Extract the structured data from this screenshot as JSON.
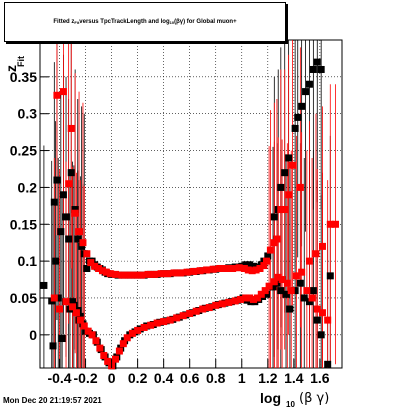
{
  "title": {
    "part1": "Fitted  z",
    "sub1": "Fit",
    "part2": "  versus TpcTrackLength and log",
    "sub2": "10",
    "part3": "(βγ) for Global muon+"
  },
  "footer": "Mon Dec 20 21:19:57 2021",
  "chart_data": {
    "type": "scatter",
    "title": "Fitted z_Fit versus TpcTrackLength and log10(βγ) for Global muon+",
    "xlabel": "log10 (β γ)",
    "ylabel": "z_Fit",
    "xlim": [
      -0.55,
      1.77
    ],
    "ylim": [
      -0.045,
      0.4
    ],
    "grid": true,
    "x_ticks": [
      -0.4,
      -0.2,
      0,
      0.2,
      0.4,
      0.6,
      0.8,
      1,
      1.2,
      1.4,
      1.6
    ],
    "x_tick_labels": [
      "-0.4",
      "-0.2",
      "0",
      "0.2",
      "0.4",
      "0.6",
      "0.8",
      "1",
      "1.2",
      "1.4",
      "1.6"
    ],
    "y_ticks": [
      0,
      0.05,
      0.1,
      0.15,
      0.2,
      0.25,
      0.3,
      0.35
    ],
    "y_tick_labels": [
      "0",
      "0.05",
      "0.1",
      "0.15",
      "0.2",
      "0.25",
      "0.3",
      "0.35"
    ],
    "colors": {
      "black": "#000000",
      "red": "#ff0000"
    },
    "series": [
      {
        "color": "black",
        "marker": "square",
        "points": [
          [
            -0.52,
            0.067
          ],
          [
            -0.46,
            0.046
          ],
          [
            -0.44,
            0.18
          ],
          [
            -0.43,
            0.1
          ],
          [
            -0.42,
            0.21
          ],
          [
            -0.41,
            0.05
          ],
          [
            -0.39,
            0.14
          ],
          [
            -0.37,
            0.19
          ],
          [
            -0.35,
            0.16
          ],
          [
            -0.33,
            0.13
          ],
          [
            -0.31,
            0.22
          ],
          [
            -0.3,
            0.045
          ],
          [
            -0.28,
            0.17
          ],
          [
            -0.26,
            0.13
          ],
          [
            -0.25,
            0.02
          ],
          [
            -0.23,
            0.12
          ],
          [
            -0.21,
            0.11
          ],
          [
            -0.19,
            0.09
          ],
          [
            -0.17,
            0.1
          ],
          [
            -0.15,
            0.1
          ],
          [
            -0.13,
            0.095
          ],
          [
            -0.11,
            0.092
          ],
          [
            -0.09,
            0.09
          ],
          [
            -0.07,
            0.088
          ],
          [
            -0.05,
            0.085
          ],
          [
            -0.03,
            0.083
          ],
          [
            0,
            0.082
          ],
          [
            0.05,
            0.081
          ],
          [
            0.1,
            0.081
          ],
          [
            0.15,
            0.081
          ],
          [
            0.2,
            0.081
          ],
          [
            0.25,
            0.081
          ],
          [
            0.3,
            0.082
          ],
          [
            0.35,
            0.082
          ],
          [
            0.4,
            0.083
          ],
          [
            0.45,
            0.083
          ],
          [
            0.5,
            0.084
          ],
          [
            0.55,
            0.084
          ],
          [
            0.6,
            0.085
          ],
          [
            0.65,
            0.086
          ],
          [
            0.7,
            0.087
          ],
          [
            0.75,
            0.088
          ],
          [
            0.8,
            0.089
          ],
          [
            0.85,
            0.09
          ],
          [
            0.9,
            0.091
          ],
          [
            0.95,
            0.092
          ],
          [
            1,
            0.093
          ],
          [
            1.03,
            0.095
          ],
          [
            1.06,
            0.095
          ],
          [
            1.09,
            0.093
          ],
          [
            1.11,
            0.092
          ],
          [
            1.13,
            0.09
          ],
          [
            1.15,
            0.095
          ],
          [
            1.17,
            0.1
          ],
          [
            1.2,
            0.107
          ],
          [
            1.25,
            0.16
          ],
          [
            1.28,
            0.17
          ],
          [
            1.3,
            0.2
          ],
          [
            1.33,
            0.22
          ],
          [
            1.36,
            0.24
          ],
          [
            1.41,
            0.28
          ],
          [
            1.43,
            0.295
          ],
          [
            1.46,
            0.31
          ],
          [
            1.49,
            0.33
          ],
          [
            1.52,
            0.34
          ],
          [
            1.55,
            0.36
          ],
          [
            1.58,
            0.37
          ],
          [
            1.61,
            0.36
          ],
          [
            1.68,
            0.08
          ],
          [
            -0.45,
            -0.015
          ],
          [
            -0.38,
            -0.005
          ],
          [
            -0.32,
            0.035
          ],
          [
            -0.29,
            0.04
          ],
          [
            -0.26,
            0.033
          ],
          [
            -0.24,
            0.025
          ],
          [
            -0.22,
            0.015
          ],
          [
            -0.2,
            0.005
          ],
          [
            -0.17,
            0.002
          ],
          [
            -0.14,
            0.0
          ],
          [
            -0.11,
            -0.01
          ],
          [
            -0.08,
            -0.02
          ],
          [
            -0.05,
            -0.03
          ],
          [
            -0.02,
            -0.038
          ],
          [
            0.01,
            -0.042
          ],
          [
            0.04,
            -0.03
          ],
          [
            0.07,
            -0.018
          ],
          [
            0.1,
            -0.008
          ],
          [
            0.14,
            0.0
          ],
          [
            0.18,
            0.004
          ],
          [
            0.22,
            0.008
          ],
          [
            0.27,
            0.012
          ],
          [
            0.32,
            0.014
          ],
          [
            0.37,
            0.017
          ],
          [
            0.42,
            0.019
          ],
          [
            0.47,
            0.021
          ],
          [
            0.52,
            0.024
          ],
          [
            0.57,
            0.027
          ],
          [
            0.62,
            0.03
          ],
          [
            0.67,
            0.033
          ],
          [
            0.72,
            0.036
          ],
          [
            0.77,
            0.038
          ],
          [
            0.82,
            0.041
          ],
          [
            0.87,
            0.043
          ],
          [
            0.92,
            0.045
          ],
          [
            0.97,
            0.047
          ],
          [
            1.01,
            0.05
          ],
          [
            1.04,
            0.047
          ],
          [
            1.07,
            0.045
          ],
          [
            1.1,
            0.045
          ],
          [
            1.13,
            0.048
          ],
          [
            1.16,
            0.052
          ],
          [
            1.19,
            0.055
          ],
          [
            1.24,
            0.065
          ],
          [
            1.27,
            0.07
          ],
          [
            1.3,
            0.06
          ],
          [
            1.34,
            0.055
          ],
          [
            1.37,
            0.035
          ],
          [
            1.41,
            0.06
          ],
          [
            1.45,
            0.07
          ],
          [
            1.48,
            0.05
          ],
          [
            1.52,
            0.045
          ],
          [
            1.55,
            0.06
          ],
          [
            1.58,
            0.02
          ],
          [
            1.61,
            0.0
          ],
          [
            1.66,
            -0.04
          ]
        ]
      },
      {
        "color": "red",
        "marker": "square",
        "points": [
          [
            -0.42,
            0.325
          ],
          [
            -0.37,
            0.33
          ],
          [
            -0.31,
            0.28
          ],
          [
            -0.28,
            0.165
          ],
          [
            -0.33,
            0.205
          ],
          [
            -0.25,
            0.14
          ],
          [
            -0.22,
            0.125
          ],
          [
            -0.19,
            0.11
          ],
          [
            -0.16,
            0.098
          ],
          [
            -0.13,
            0.093
          ],
          [
            -0.1,
            0.09
          ],
          [
            -0.07,
            0.087
          ],
          [
            -0.04,
            0.085
          ],
          [
            -0.01,
            0.083
          ],
          [
            0.03,
            0.082
          ],
          [
            0.08,
            0.081
          ],
          [
            0.13,
            0.081
          ],
          [
            0.18,
            0.081
          ],
          [
            0.23,
            0.081
          ],
          [
            0.28,
            0.082
          ],
          [
            0.33,
            0.082
          ],
          [
            0.38,
            0.083
          ],
          [
            0.43,
            0.083
          ],
          [
            0.48,
            0.084
          ],
          [
            0.53,
            0.084
          ],
          [
            0.58,
            0.085
          ],
          [
            0.63,
            0.086
          ],
          [
            0.68,
            0.087
          ],
          [
            0.73,
            0.088
          ],
          [
            0.78,
            0.089
          ],
          [
            0.83,
            0.09
          ],
          [
            0.88,
            0.09
          ],
          [
            0.93,
            0.09
          ],
          [
            0.98,
            0.091
          ],
          [
            1.02,
            0.09
          ],
          [
            1.05,
            0.088
          ],
          [
            1.08,
            0.087
          ],
          [
            1.11,
            0.088
          ],
          [
            1.14,
            0.09
          ],
          [
            1.17,
            0.094
          ],
          [
            1.19,
            0.1
          ],
          [
            1.22,
            0.115
          ],
          [
            1.25,
            0.125
          ],
          [
            1.27,
            0.13
          ],
          [
            1.3,
            0.17
          ],
          [
            1.33,
            0.17
          ],
          [
            1.36,
            0.19
          ],
          [
            1.39,
            0.23
          ],
          [
            1.45,
            0.2
          ],
          [
            1.52,
            0.1
          ],
          [
            1.57,
            0.11
          ],
          [
            1.62,
            0.12
          ],
          [
            1.68,
            0.15
          ],
          [
            1.72,
            0.15
          ],
          [
            -0.44,
            0.05
          ],
          [
            -0.4,
            0.035
          ],
          [
            -0.35,
            0.045
          ],
          [
            -0.3,
            0.038
          ],
          [
            -0.27,
            0.03
          ],
          [
            -0.24,
            0.02
          ],
          [
            -0.21,
            0.012
          ],
          [
            -0.18,
            0.005
          ],
          [
            -0.15,
            0.0
          ],
          [
            -0.12,
            -0.008
          ],
          [
            -0.09,
            -0.018
          ],
          [
            -0.06,
            -0.028
          ],
          [
            -0.03,
            -0.036
          ],
          [
            0.0,
            -0.042
          ],
          [
            0.03,
            -0.033
          ],
          [
            0.06,
            -0.022
          ],
          [
            0.09,
            -0.012
          ],
          [
            0.12,
            -0.004
          ],
          [
            0.16,
            0.002
          ],
          [
            0.2,
            0.006
          ],
          [
            0.25,
            0.01
          ],
          [
            0.3,
            0.013
          ],
          [
            0.35,
            0.016
          ],
          [
            0.4,
            0.018
          ],
          [
            0.45,
            0.02
          ],
          [
            0.5,
            0.023
          ],
          [
            0.55,
            0.026
          ],
          [
            0.6,
            0.029
          ],
          [
            0.65,
            0.032
          ],
          [
            0.7,
            0.035
          ],
          [
            0.75,
            0.037
          ],
          [
            0.8,
            0.04
          ],
          [
            0.85,
            0.042
          ],
          [
            0.9,
            0.044
          ],
          [
            0.95,
            0.046
          ],
          [
            0.99,
            0.048
          ],
          [
            1.03,
            0.05
          ],
          [
            1.06,
            0.05
          ],
          [
            1.09,
            0.048
          ],
          [
            1.12,
            0.05
          ],
          [
            1.15,
            0.055
          ],
          [
            1.18,
            0.06
          ],
          [
            1.21,
            0.066
          ],
          [
            1.25,
            0.072
          ],
          [
            1.28,
            0.078
          ],
          [
            1.31,
            0.075
          ],
          [
            1.35,
            0.07
          ],
          [
            1.38,
            0.06
          ],
          [
            1.42,
            0.08
          ],
          [
            1.46,
            0.085
          ],
          [
            1.5,
            0.06
          ],
          [
            1.54,
            0.05
          ],
          [
            1.58,
            0.035
          ],
          [
            1.62,
            0.03
          ],
          [
            1.66,
            0.02
          ]
        ]
      }
    ]
  }
}
